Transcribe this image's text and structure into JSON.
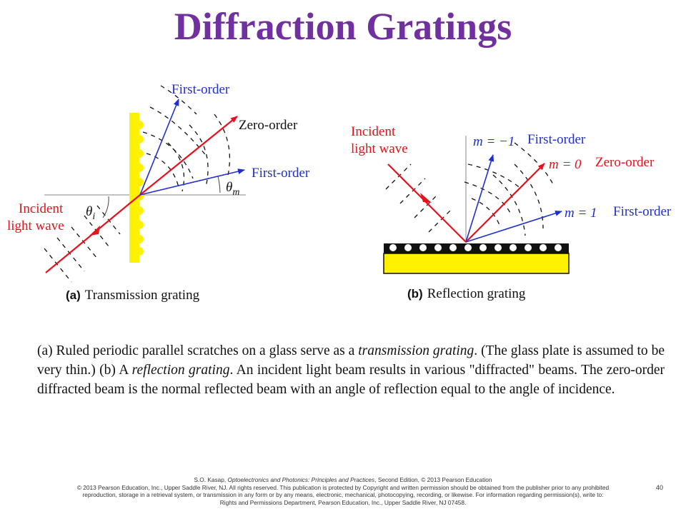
{
  "title": "Diffraction Gratings",
  "figure_a": {
    "first_order_top": "First-order",
    "zero_order": "Zero-order",
    "first_order_right": "First-order",
    "theta_m": "θ",
    "theta_m_sub": "m",
    "theta_i": "θ",
    "theta_i_sub": "i",
    "incident_line1": "Incident",
    "incident_line2": "light wave",
    "caption_prefix": "(a)",
    "caption_text": "Transmission grating"
  },
  "figure_b": {
    "incident_line1": "Incident",
    "incident_line2": "light wave",
    "m_neg1": "m = −1",
    "first_order_top": "First-order",
    "m_0": "m = 0",
    "zero_order": "Zero-order",
    "m_1": "m = 1",
    "first_order_right": "First-order",
    "caption_prefix": "(b)",
    "caption_text": "Reflection grating"
  },
  "caption": {
    "p1": "(a) Ruled periodic parallel scratches on a glass serve as a ",
    "em1": "transmission grating",
    "p2": ". (The glass plate is assumed to be very thin.) (b) A ",
    "em2": "reflection grating",
    "p3": ". An incident light beam results in various \"diffracted\" beams. The zero-order diffracted beam is the normal reflected beam with an angle of reflection equal to the angle of incidence."
  },
  "footer": {
    "line1_author": "S.O. Kasap, ",
    "line1_book": "Optoelectronics and Photonics: Principles and Practices",
    "line1_rest": ", Second Edition, © 2013 Pearson Education",
    "line2": "© 2013 Pearson Education, Inc., Upper Saddle River, NJ. All rights reserved. This publication is protected by Copyright and written permission should be obtained from the publisher prior to any prohibited",
    "line3": "reproduction, storage in a retrieval system, or transmission in any form or by any means, electronic, mechanical, photocopying, recording, or likewise. For information regarding permission(s), write to:",
    "line4": "Rights and Permissions Department, Pearson Education, Inc., Upper Saddle River, NJ 07458.",
    "page_number": "40"
  },
  "colors": {
    "title": "#7030A0",
    "red_ray": "#E8101B",
    "blue_ray": "#1F2FD0",
    "grating_yellow": "#FFF200",
    "label_blue": "#1F2FD0",
    "label_red": "#E8101B"
  }
}
